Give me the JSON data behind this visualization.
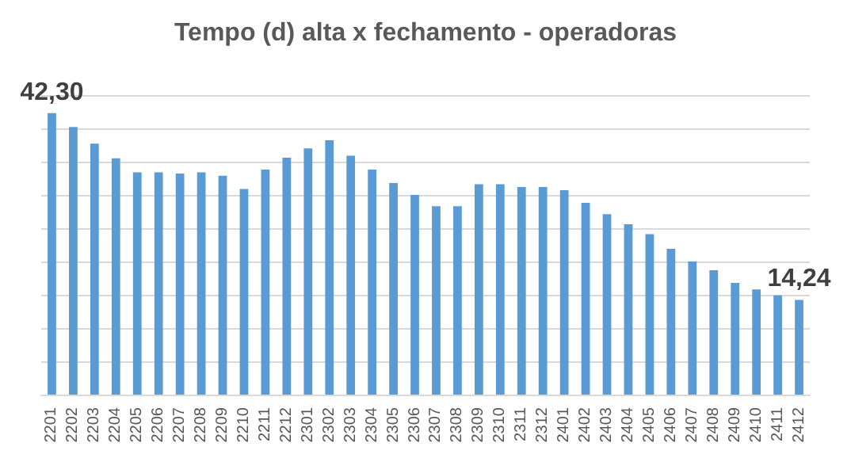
{
  "chart_data": {
    "type": "bar",
    "title": "Tempo (d) alta x fechamento - operadoras",
    "grid": "y",
    "ylim": [
      0,
      45
    ],
    "yticks": [
      {
        "value": 0,
        "label": null
      },
      {
        "value": 5,
        "label": null
      },
      {
        "value": 10,
        "label": null
      },
      {
        "value": 15,
        "label": null
      },
      {
        "value": 20,
        "label": null
      },
      {
        "value": 25,
        "label": null
      },
      {
        "value": 30,
        "label": null
      },
      {
        "value": 35,
        "label": null
      },
      {
        "value": 40,
        "label": null
      },
      {
        "value": 45,
        "label": null
      }
    ],
    "categories": [
      "2201",
      "2202",
      "2203",
      "2204",
      "2205",
      "2206",
      "2207",
      "2208",
      "2209",
      "2210",
      "2211",
      "2212",
      "2301",
      "2302",
      "2303",
      "2304",
      "2305",
      "2306",
      "2307",
      "2308",
      "2309",
      "2310",
      "2311",
      "2312",
      "2401",
      "2402",
      "2403",
      "2404",
      "2405",
      "2406",
      "2407",
      "2408",
      "2409",
      "2410",
      "2411",
      "2412"
    ],
    "series": [
      {
        "color": "#5b9bd5",
        "values": [
          42.3,
          40.2,
          37.7,
          35.5,
          33.4,
          33.4,
          33.2,
          33.4,
          32.9,
          30.9,
          33.8,
          35.6,
          37.0,
          38.2,
          35.9,
          33.8,
          31.8,
          30.0,
          28.3,
          28.3,
          31.6,
          31.6,
          31.2,
          31.2,
          30.7,
          28.8,
          27.1,
          25.6,
          24.1,
          21.9,
          20.0,
          18.7,
          16.8,
          15.8,
          14.9,
          14.24
        ],
        "value_labels": [
          "42,30",
          null,
          null,
          null,
          null,
          null,
          null,
          null,
          null,
          null,
          null,
          null,
          null,
          null,
          null,
          null,
          null,
          null,
          null,
          null,
          null,
          null,
          null,
          null,
          null,
          null,
          null,
          null,
          null,
          null,
          null,
          null,
          null,
          null,
          null,
          "14,24"
        ]
      }
    ]
  }
}
